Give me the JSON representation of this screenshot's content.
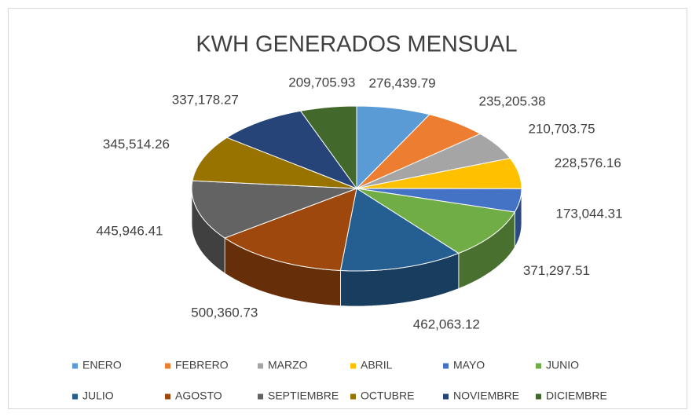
{
  "chart_data": {
    "type": "pie",
    "title": "KWH GENERADOS MENSUAL",
    "categories": [
      "ENERO",
      "FEBRERO",
      "MARZO",
      "ABRIL",
      "MAYO",
      "JUNIO",
      "JULIO",
      "AGOSTO",
      "SEPTIEMBRE",
      "OCTUBRE",
      "NOVIEMBRE",
      "DICIEMBRE"
    ],
    "values": [
      276439.79,
      235205.38,
      210703.75,
      228576.16,
      173044.31,
      371297.51,
      462063.12,
      500360.73,
      445946.41,
      345514.26,
      337178.27,
      209705.93
    ],
    "value_labels": [
      "276,439.79",
      "235,205.38",
      "210,703.75",
      "228,576.16",
      "173,044.31",
      "371,297.51",
      "462,063.12",
      "500,360.73",
      "445,946.41",
      "345,514.26",
      "337,178.27",
      "209,705.93"
    ],
    "colors": [
      "#5b9bd5",
      "#ed7d31",
      "#a5a5a5",
      "#ffc000",
      "#4472c4",
      "#70ad47",
      "#255e91",
      "#9e480e",
      "#636363",
      "#997300",
      "#264478",
      "#43682b"
    ],
    "legend": "bottom"
  }
}
